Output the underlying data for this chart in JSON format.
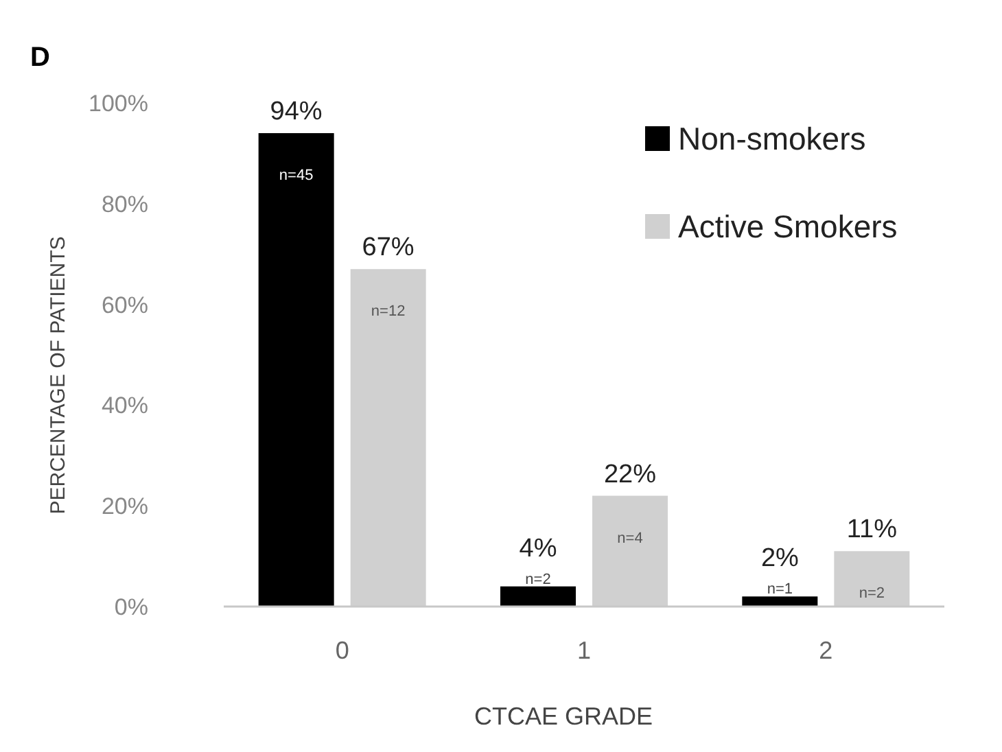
{
  "chart_data": {
    "type": "bar",
    "xlabel": "CTCAE GRADE",
    "ylabel": "PERCENTAGE OF PATIENTS",
    "categories": [
      "0",
      "1",
      "2"
    ],
    "series": [
      {
        "name": "Non-smokers",
        "color": "#000000",
        "values": [
          94,
          4,
          2
        ],
        "value_labels": [
          "94%",
          "4%",
          "2%"
        ]
      },
      {
        "name": "Active Smokers",
        "color": "#d0d0d0",
        "values": [
          67,
          22,
          11
        ],
        "value_labels": [
          "67%",
          "22%",
          "11%"
        ]
      }
    ],
    "ylim": [
      0,
      100
    ],
    "yticks": [
      {
        "value": 0,
        "label": "0%"
      },
      {
        "value": 20,
        "label": "20%"
      },
      {
        "value": 40,
        "label": "40%"
      },
      {
        "value": 60,
        "label": "60%"
      },
      {
        "value": 80,
        "label": "80%"
      },
      {
        "value": 100,
        "label": "100%"
      }
    ],
    "legend": "top right",
    "annotations": [
      "D",
      "n=45",
      "n=12",
      "n=2",
      "n=4",
      "n=1",
      "n=2"
    ]
  }
}
